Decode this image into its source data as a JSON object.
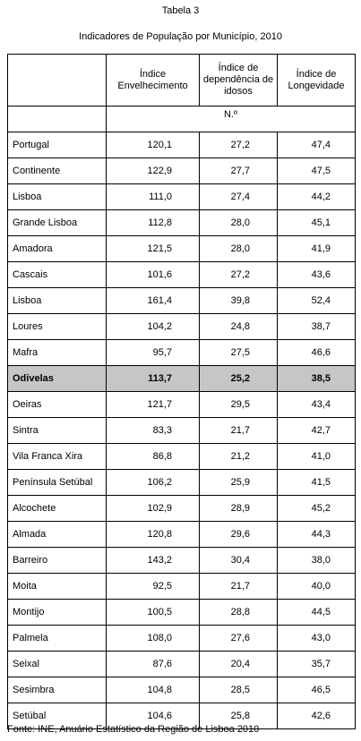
{
  "title": "Tabela 3",
  "subtitle": "Indicadores de População por Município, 2010",
  "headers": [
    "",
    "Índice Envelhecimento",
    "Índice de dependência de idosos",
    "Índice de Longevidade"
  ],
  "unit": "N.º",
  "rows": [
    {
      "name": "Portugal",
      "v1": "120,1",
      "v2": "27,2",
      "v3": "47,4"
    },
    {
      "name": "Continente",
      "v1": "122,9",
      "v2": "27,7",
      "v3": "47,5"
    },
    {
      "name": "Lisboa",
      "v1": "111,0",
      "v2": "27,4",
      "v3": "44,2"
    },
    {
      "name": "Grande Lisboa",
      "v1": "112,8",
      "v2": "28,0",
      "v3": "45,1"
    },
    {
      "name": "Amadora",
      "v1": "121,5",
      "v2": "28,0",
      "v3": "41,9"
    },
    {
      "name": "Cascais",
      "v1": "101,6",
      "v2": "27,2",
      "v3": "43,6"
    },
    {
      "name": "Lisboa",
      "v1": "161,4",
      "v2": "39,8",
      "v3": "52,4"
    },
    {
      "name": "Loures",
      "v1": "104,2",
      "v2": "24,8",
      "v3": "38,7"
    },
    {
      "name": "Mafra",
      "v1": "95,7",
      "v2": "27,5",
      "v3": "46,6"
    },
    {
      "name": "Odivelas",
      "v1": "113,7",
      "v2": "25,2",
      "v3": "38,5",
      "highlight": true
    },
    {
      "name": "Oeiras",
      "v1": "121,7",
      "v2": "29,5",
      "v3": "43,4"
    },
    {
      "name": "Sintra",
      "v1": "83,3",
      "v2": "21,7",
      "v3": "42,7"
    },
    {
      "name": "Vila Franca Xira",
      "v1": "86,8",
      "v2": "21,2",
      "v3": "41,0"
    },
    {
      "name": "Península Setúbal",
      "v1": "106,2",
      "v2": "25,9",
      "v3": "41,5"
    },
    {
      "name": "Alcochete",
      "v1": "102,9",
      "v2": "28,9",
      "v3": "45,2"
    },
    {
      "name": "Almada",
      "v1": "120,8",
      "v2": "29,6",
      "v3": "44,3"
    },
    {
      "name": "Barreiro",
      "v1": "143,2",
      "v2": "30,4",
      "v3": "38,0"
    },
    {
      "name": "Moita",
      "v1": "92,5",
      "v2": "21,7",
      "v3": "40,0"
    },
    {
      "name": "Montijo",
      "v1": "100,5",
      "v2": "28,8",
      "v3": "44,5"
    },
    {
      "name": "Palmela",
      "v1": "108,0",
      "v2": "27,6",
      "v3": "43,0"
    },
    {
      "name": "Seixal",
      "v1": "87,6",
      "v2": "20,4",
      "v3": "35,7"
    },
    {
      "name": "Sesimbra",
      "v1": "104,8",
      "v2": "28,5",
      "v3": "46,5"
    },
    {
      "name": "Setúbal",
      "v1": "104,6",
      "v2": "25,8",
      "v3": "42,6"
    }
  ],
  "source": "Fonte: INE, Anuário Estatístico da Região de Lisboa 2010",
  "colors": {
    "highlight_row": "#c6c6c6",
    "border": "#000000"
  }
}
